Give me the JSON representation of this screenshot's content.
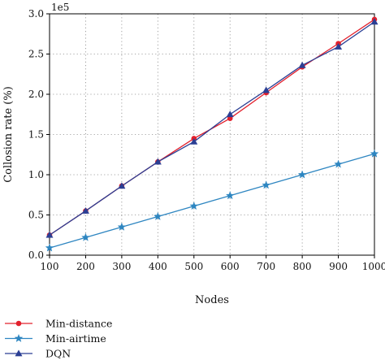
{
  "chart_data": {
    "type": "line",
    "xlabel": "Nodes",
    "ylabel": "Collosion rate (%)",
    "y_exponent_label": "1e5",
    "x": [
      100,
      200,
      300,
      400,
      500,
      600,
      700,
      800,
      900,
      1000
    ],
    "xlim": [
      100,
      1000
    ],
    "ylim": [
      0,
      3.0
    ],
    "x_ticks": [
      100,
      200,
      300,
      400,
      500,
      600,
      700,
      800,
      900,
      1000
    ],
    "y_ticks": [
      0.0,
      0.5,
      1.0,
      1.5,
      2.0,
      2.5,
      3.0
    ],
    "y_tick_labels": [
      "0.0",
      "0.5",
      "1.0",
      "1.5",
      "2.0",
      "2.5",
      "3.0"
    ],
    "grid": true,
    "legend_position": "bottom-left",
    "series": [
      {
        "name": "Min-distance",
        "color": "#e2202c",
        "marker": "circle",
        "values": [
          0.25,
          0.55,
          0.86,
          1.16,
          1.45,
          1.7,
          2.02,
          2.34,
          2.63,
          2.93
        ]
      },
      {
        "name": "Min-airtime",
        "color": "#2e86c1",
        "marker": "star",
        "values": [
          0.09,
          0.22,
          0.35,
          0.48,
          0.61,
          0.74,
          0.87,
          1.0,
          1.13,
          1.26
        ]
      },
      {
        "name": "DQN",
        "color": "#2b3f94",
        "marker": "triangle",
        "values": [
          0.25,
          0.55,
          0.86,
          1.16,
          1.41,
          1.75,
          2.05,
          2.36,
          2.59,
          2.9
        ]
      }
    ]
  }
}
